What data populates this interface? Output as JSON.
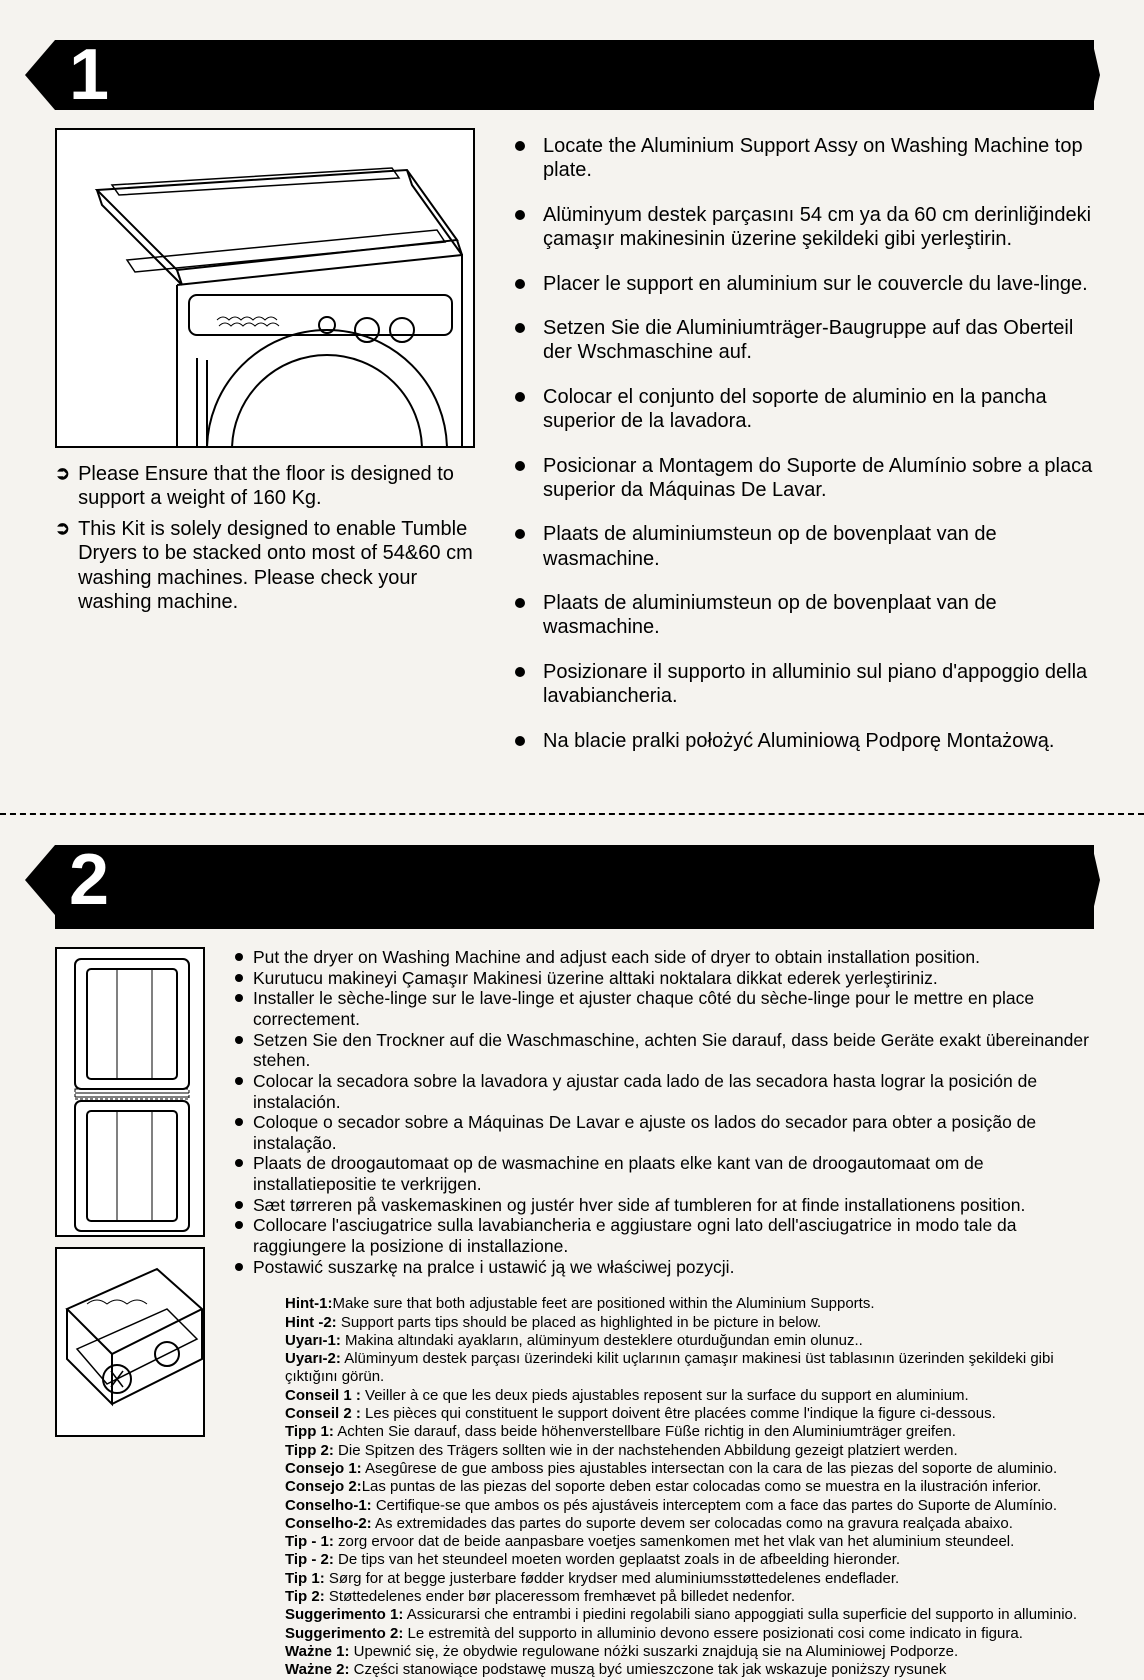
{
  "colors": {
    "background": "#f5f3ef",
    "text": "#000000",
    "bar": "#000000",
    "bullet": "#000000"
  },
  "section1": {
    "number": "1",
    "notes": [
      "Please Ensure that the floor is designed to support a weight of 160 Kg.",
      "This Kit is solely designed to enable Tumble Dryers to be stacked onto most of 54&60 cm washing machines. Please check your washing machine."
    ],
    "bullets": [
      "Locate the Aluminium Support Assy on Washing Machine top plate.",
      "Alüminyum destek parçasını 54 cm ya da 60 cm derinliğindeki çamaşır makinesinin üzerine şekildeki gibi yerleştirin.",
      "Placer le support en aluminium sur le couvercle du lave-linge.",
      "Setzen Sie die Aluminiumträger-Baugruppe auf das Oberteil der Wschmaschine auf.",
      "Colocar el conjunto del soporte de aluminio en la pancha superior de la lavadora.",
      "Posicionar a Montagem do Suporte de Alumínio sobre a placa superior da Máquinas De Lavar.",
      "Plaats de aluminiumsteun op de bovenplaat van de wasmachine.",
      "Plaats de aluminiumsteun op de bovenplaat van de wasmachine.",
      "Posizionare il supporto in alluminio sul piano d'appoggio della lavabiancheria.",
      "Na blacie pralki położyć Aluminiową Podporę Montażową."
    ]
  },
  "section2": {
    "number": "2",
    "bullets": [
      "Put the dryer on Washing Machine and adjust each side of dryer to obtain installation position.",
      "Kurutucu makineyi Çamaşır Makinesi üzerine alttaki noktalara dikkat ederek yerleştiriniz.",
      "Installer le sèche-linge sur le lave-linge et ajuster chaque côté du sèche-linge pour le mettre en place correctement.",
      "Setzen Sie den Trockner auf die Waschmaschine, achten Sie darauf, dass beide Geräte exakt übereinander stehen.",
      "Colocar la secadora sobre la lavadora y ajustar cada lado de las secadora hasta lograr la posición de instalación.",
      "Coloque o secador sobre a Máquinas De Lavar e ajuste os lados do secador para obter a posição de instalação.",
      "Plaats de droogautomaat op de wasmachine en plaats elke kant van de droogautomaat om de installatiepositie te verkrijgen.",
      "Sæt tørreren på vaskemaskinen og justér hver side af tumbleren for at  finde installationens position.",
      "Collocare l'asciugatrice sulla lavabiancheria e aggiustare ogni lato dell'asciugatrice in modo tale da raggiungere la posizione di installazione.",
      "Postawić suszarkę na pralce i ustawić ją we właściwej pozycji."
    ],
    "hints": [
      {
        "label": "Hint-1:",
        "text": "Make sure that  both adjustable feet are positioned within the Aluminium Supports."
      },
      {
        "label": "Hint -2:",
        "text": " Support parts tips should be placed as highlighted  in be picture in below."
      },
      {
        "label": "Uyarı-1:",
        "text": " Makina altındaki ayakların, alüminyum desteklere oturduğundan emin olunuz.."
      },
      {
        "label": "Uyarı-2:",
        "text": " Alüminyum destek parçası üzerindeki kilit uçlarının çamaşır makinesi üst tablasının üzerinden şekildeki gibi çıktığını görün."
      },
      {
        "label": "Conseil 1 :",
        "text": " Veiller à ce que les deux pieds ajustables reposent sur la surface du support en aluminium."
      },
      {
        "label": "Conseil 2 :",
        "text": "  Les pièces qui constituent le support doivent être placées comme l'indique la figure ci-dessous."
      },
      {
        "label": "Tipp 1:",
        "text": " Achten Sie darauf, dass beide höhenverstellbare Füße richtig in den Aluminiumträger greifen."
      },
      {
        "label": "Tipp 2:",
        "text": " Die Spitzen des Trägers sollten wie in der nachstehenden Abbildung gezeigt platziert werden."
      },
      {
        "label": "Consejo 1:",
        "text": " Asegûrese de gue amboss pies ajustables intersectan con la cara de las piezas del soporte de aluminio."
      },
      {
        "label": "Consejo 2:",
        "text": "Las puntas de las piezas del soporte  deben estar colocadas como se muestra en la ilustración inferior."
      },
      {
        "label": "Conselho-1:",
        "text": " Certifique-se que ambos os pés ajustáveis interceptem com a face das partes do Suporte de Alumínio."
      },
      {
        "label": "Conselho-2:",
        "text": "  As extremidades das partes do suporte devem ser colocadas como na gravura realçada abaixo."
      },
      {
        "label": "Tip - 1:",
        "text": " zorg ervoor dat de beide aanpasbare voetjes samenkomen met het vlak van het aluminium steundeel."
      },
      {
        "label": "Tip - 2:",
        "text": " De tips van het steundeel moeten worden geplaatst zoals in de afbeelding hieronder."
      },
      {
        "label": "Tip 1:",
        "text": " Sørg for at begge justerbare fødder krydser med aluminiumsstøttedelenes endeflader."
      },
      {
        "label": "Tip 2:",
        "text": " Støttedelenes ender bør placeressom fremhævet på billedet nedenfor."
      },
      {
        "label": "Suggerimento 1:",
        "text": " Assicurarsi che entrambi i piedini regolabili siano appoggiati sulla superficie del supporto in alluminio."
      },
      {
        "label": "Suggerimento 2:",
        "text": " Le estremità del supporto in alluminio devono essere posizionati cosi come indicato in figura."
      },
      {
        "label": "Ważne 1:",
        "text": " Upewnić się, że obydwie regulowane nóżki suszarki znajdują sie na Aluminiowej Podporze."
      },
      {
        "label": "Ważne 2:",
        "text": " Części stanowiące podstawę muszą być umieszczone tak jak wskazuje poniższy rysunek"
      }
    ]
  }
}
